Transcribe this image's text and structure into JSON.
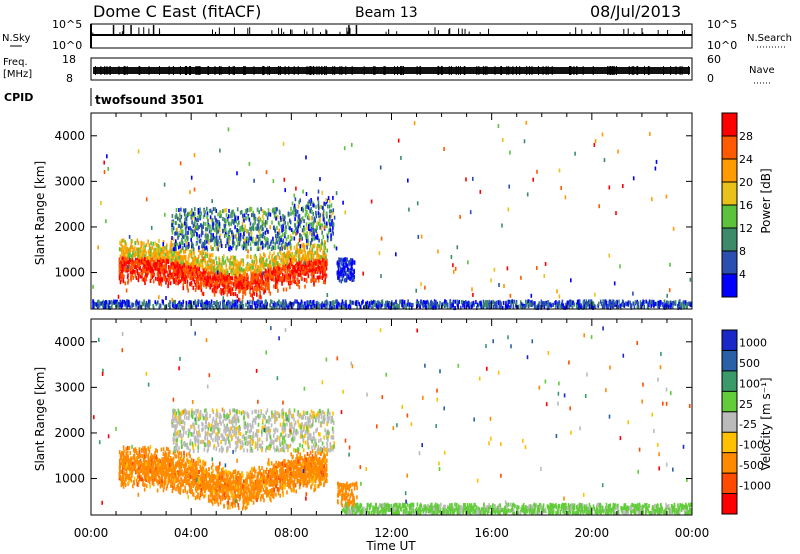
{
  "header": {
    "title": "Dome C East (fitACF)",
    "beam": "Beam 13",
    "date": "08/Jul/2013"
  },
  "status_panels": {
    "nsky_label": "N.Sky",
    "nsky_tick_top": "10^5",
    "nsky_tick_bottom": "10^0",
    "nsearch_label": "N.Search",
    "nsearch_tick_top": "10^5",
    "nsearch_tick_bottom": "10^0",
    "freq_label": "Freq.",
    "freq_unit": "[MHz]",
    "freq_tick_top": "18",
    "freq_tick_bottom": "8",
    "nave_label": "Nave",
    "nave_tick_top": "60",
    "nave_tick_bottom": "0",
    "cpid_label": "CPID",
    "cpid_value": "twofsound 3501"
  },
  "colors": {
    "power_scale": [
      "#0000ff",
      "#2a4fb0",
      "#3d8a6a",
      "#5cc23c",
      "#e8c21a",
      "#ff9a00",
      "#ff5a00",
      "#ff0000"
    ],
    "velocity_scale": [
      "#ff0000",
      "#ff4a00",
      "#ff8a00",
      "#ffc000",
      "#bbbbbb",
      "#62cc3a",
      "#3a9a6a",
      "#2a60a8",
      "#1a28c8"
    ]
  },
  "chart_data": [
    {
      "type": "heatmap",
      "name": "power",
      "ylabel": "Slant Range [km]",
      "y_ticks": [
        "1000",
        "2000",
        "3000",
        "4000"
      ],
      "ylim": [
        200,
        4500
      ],
      "xlim": [
        0,
        24
      ],
      "x_ticks": [
        "00:00",
        "04:00",
        "08:00",
        "12:00",
        "16:00",
        "20:00",
        "00:00"
      ],
      "colorbar_label": "Power [dB]",
      "colorbar_ticks": [
        "4",
        "8",
        "12",
        "16",
        "20",
        "24",
        "28"
      ],
      "colorbar_range": [
        0,
        32
      ],
      "regions": [
        {
          "t0": 1.0,
          "t1": 9.5,
          "r0": 600,
          "r1": 1700,
          "level": "high"
        },
        {
          "t0": 4.0,
          "t1": 10.0,
          "r0": 1500,
          "r1": 2800,
          "level": "mid"
        },
        {
          "t0": 0.0,
          "t1": 24.0,
          "r0": 200,
          "r1": 350,
          "level": "low"
        }
      ]
    },
    {
      "type": "heatmap",
      "name": "velocity",
      "xlabel": "Time UT",
      "ylabel": "Slant Range [km]",
      "y_ticks": [
        "1000",
        "2000",
        "3000",
        "4000"
      ],
      "ylim": [
        200,
        4500
      ],
      "xlim": [
        0,
        24
      ],
      "x_ticks": [
        "00:00",
        "04:00",
        "08:00",
        "12:00",
        "16:00",
        "20:00",
        "00:00"
      ],
      "colorbar_label": "Velocity [m s⁻¹]",
      "colorbar_ticks": [
        "1000",
        "500",
        "100",
        "25",
        "-25",
        "-100",
        "-500",
        "-1000"
      ],
      "regions": [
        {
          "t0": 1.0,
          "t1": 9.5,
          "r0": 500,
          "r1": 1700,
          "level": "negative"
        },
        {
          "t0": 4.0,
          "t1": 10.0,
          "r0": 1700,
          "r1": 2800,
          "level": "near-zero"
        },
        {
          "t0": 10.0,
          "t1": 24.0,
          "r0": 200,
          "r1": 400,
          "level": "small-positive"
        }
      ]
    }
  ]
}
